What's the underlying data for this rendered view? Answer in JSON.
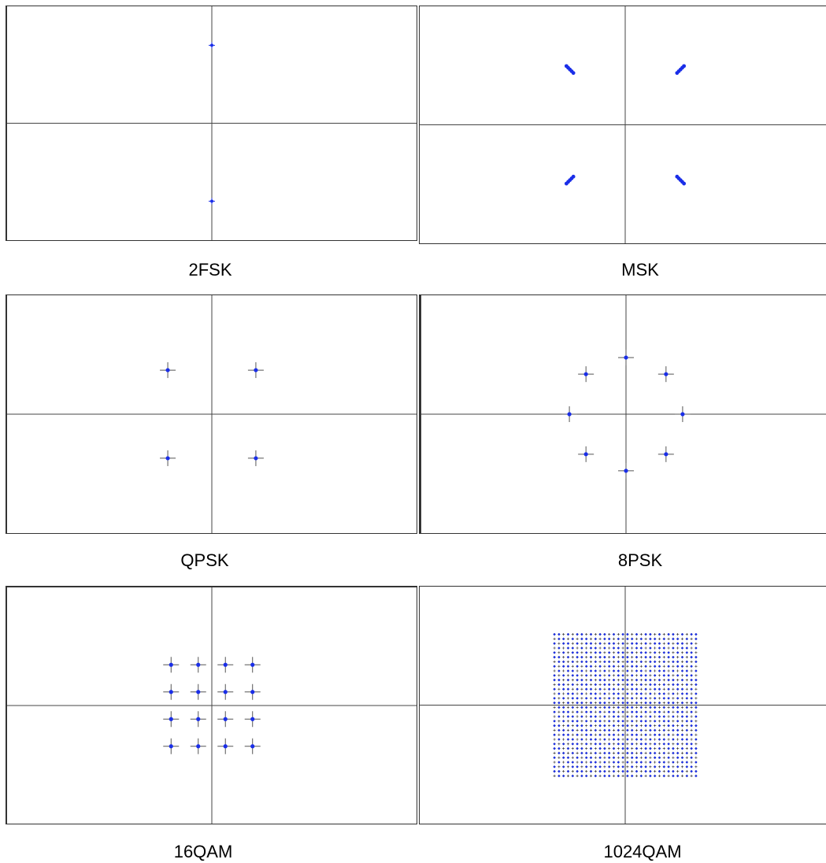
{
  "colors": {
    "axis": "#444444",
    "crosshair": "#555555",
    "point": "#1a2ee8",
    "frame": "#333333",
    "background": "#ffffff"
  },
  "panels": [
    {
      "caption": "2FSK",
      "x_axis_fraction": 0.5,
      "y_axis_fraction": 0.5,
      "marker": "plus-small",
      "points": [
        [
          0,
          1
        ],
        [
          0,
          -1
        ]
      ],
      "range": [
        -1.5,
        1.5
      ]
    },
    {
      "caption": "MSK",
      "x_axis_fraction": 0.5,
      "y_axis_fraction": 0.5,
      "marker": "smear",
      "points": [
        [
          -0.7,
          0.7
        ],
        [
          0.7,
          0.7
        ],
        [
          -0.7,
          -0.7
        ],
        [
          0.7,
          -0.7
        ]
      ],
      "range": [
        -1.5,
        1.5
      ]
    },
    {
      "caption": "QPSK",
      "x_axis_fraction": 0.5,
      "y_axis_fraction": 0.5,
      "marker": "cross",
      "points": [
        [
          -1,
          1
        ],
        [
          1,
          1
        ],
        [
          -1,
          -1
        ],
        [
          1,
          -1
        ]
      ],
      "range": [
        -2.7,
        2.7
      ]
    },
    {
      "caption": "8PSK",
      "x_axis_fraction": 0.5,
      "y_axis_fraction": 0.5,
      "marker": "cross",
      "points": [
        [
          0,
          1
        ],
        [
          0.707,
          0.707
        ],
        [
          1,
          0
        ],
        [
          0.707,
          -0.707
        ],
        [
          0,
          -1
        ],
        [
          -0.707,
          -0.707
        ],
        [
          -1,
          0
        ],
        [
          -0.707,
          0.707
        ]
      ],
      "range": [
        -2.1,
        2.1
      ]
    },
    {
      "caption": "16QAM",
      "x_axis_fraction": 0.5,
      "y_axis_fraction": 0.5,
      "marker": "cross",
      "points": [
        [
          -3,
          3
        ],
        [
          -1,
          3
        ],
        [
          1,
          3
        ],
        [
          3,
          3
        ],
        [
          -3,
          1
        ],
        [
          -1,
          1
        ],
        [
          1,
          1
        ],
        [
          3,
          1
        ],
        [
          -3,
          -1
        ],
        [
          -1,
          -1
        ],
        [
          1,
          -1
        ],
        [
          3,
          -1
        ],
        [
          -3,
          -3
        ],
        [
          -1,
          -3
        ],
        [
          1,
          -3
        ],
        [
          3,
          -3
        ]
      ],
      "range": [
        -8.7,
        8.7
      ]
    },
    {
      "caption": "1024QAM",
      "x_axis_fraction": 0.5,
      "y_axis_fraction": 0.5,
      "marker": "grid",
      "grid_size": 32,
      "range": [
        -85,
        85
      ]
    }
  ]
}
